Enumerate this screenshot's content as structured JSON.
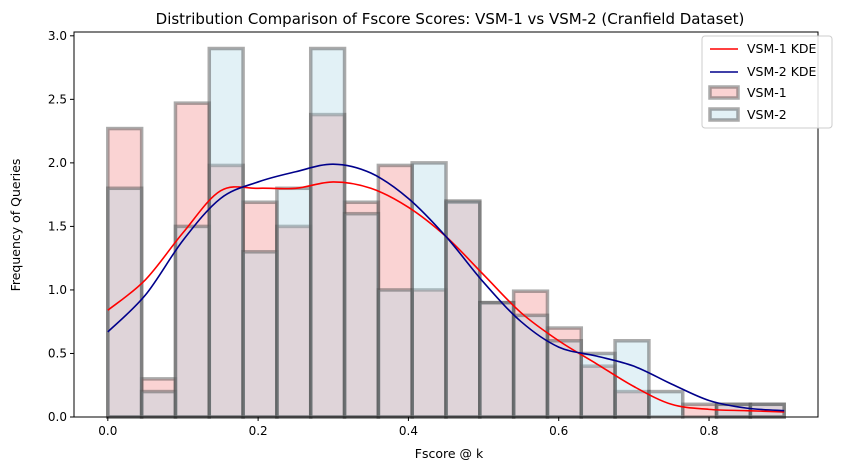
{
  "chart_data": {
    "type": "bar",
    "title": "Distribution Comparison of Fscore Scores: VSM-1 vs VSM-2 (Cranfield Dataset)",
    "xlabel": "Fscore @ k",
    "ylabel": "Frequency of Queries",
    "xlim": [
      -0.045,
      0.945
    ],
    "ylim": [
      0,
      3.03
    ],
    "xticks": [
      0.0,
      0.2,
      0.4,
      0.6,
      0.8
    ],
    "xtick_labels": [
      "0.0",
      "0.2",
      "0.4",
      "0.6",
      "0.8"
    ],
    "yticks": [
      0.0,
      0.5,
      1.0,
      1.5,
      2.0,
      2.5,
      3.0
    ],
    "ytick_labels": [
      "0.0",
      "0.5",
      "1.0",
      "1.5",
      "2.0",
      "2.5",
      "3.0"
    ],
    "grid": false,
    "legend_position": "top-right",
    "bin_width": 0.045,
    "histograms": [
      {
        "name": "VSM-1",
        "color": "#f08080",
        "edge_color": "#555555",
        "bin_starts": [
          0.0,
          0.045,
          0.09,
          0.135,
          0.18,
          0.225,
          0.27,
          0.315,
          0.36,
          0.405,
          0.45,
          0.495,
          0.54,
          0.585,
          0.63,
          0.675,
          0.72,
          0.765,
          0.81,
          0.855
        ],
        "values": [
          2.27,
          0.3,
          2.47,
          1.98,
          1.69,
          1.5,
          2.38,
          1.69,
          1.98,
          1.0,
          1.69,
          0.9,
          0.99,
          0.7,
          0.4,
          0.2,
          0.0,
          0.1,
          0.1,
          0.1
        ]
      },
      {
        "name": "VSM-2",
        "color": "#add8e6",
        "edge_color": "#555555",
        "bin_starts": [
          0.0,
          0.045,
          0.09,
          0.135,
          0.18,
          0.225,
          0.27,
          0.315,
          0.36,
          0.405,
          0.45,
          0.495,
          0.54,
          0.585,
          0.63,
          0.675,
          0.72,
          0.765,
          0.81,
          0.855
        ],
        "values": [
          1.8,
          0.2,
          1.5,
          2.9,
          1.3,
          1.8,
          2.9,
          1.6,
          1.0,
          2.0,
          1.7,
          0.9,
          0.8,
          0.6,
          0.5,
          0.6,
          0.2,
          0.0,
          0.1,
          0.1
        ]
      }
    ],
    "kde": [
      {
        "name": "VSM-1 KDE",
        "color": "#ff0000",
        "x": [
          0.0,
          0.05,
          0.1,
          0.15,
          0.2,
          0.25,
          0.3,
          0.35,
          0.4,
          0.45,
          0.5,
          0.55,
          0.6,
          0.65,
          0.7,
          0.75,
          0.8,
          0.85,
          0.9
        ],
        "y": [
          0.84,
          1.08,
          1.45,
          1.78,
          1.8,
          1.8,
          1.85,
          1.8,
          1.65,
          1.42,
          1.12,
          0.82,
          0.6,
          0.42,
          0.24,
          0.1,
          0.06,
          0.05,
          0.04
        ]
      },
      {
        "name": "VSM-2 KDE",
        "color": "#00008b",
        "x": [
          0.0,
          0.05,
          0.1,
          0.15,
          0.2,
          0.25,
          0.3,
          0.35,
          0.4,
          0.45,
          0.5,
          0.55,
          0.6,
          0.65,
          0.7,
          0.75,
          0.8,
          0.85,
          0.9
        ],
        "y": [
          0.67,
          0.96,
          1.39,
          1.72,
          1.85,
          1.93,
          1.99,
          1.92,
          1.72,
          1.42,
          1.06,
          0.75,
          0.55,
          0.48,
          0.4,
          0.26,
          0.13,
          0.07,
          0.05
        ]
      }
    ],
    "legend": [
      {
        "label": "VSM-1 KDE",
        "kind": "line",
        "color": "#ff0000"
      },
      {
        "label": "VSM-2 KDE",
        "kind": "line",
        "color": "#00008b"
      },
      {
        "label": "VSM-1",
        "kind": "patch",
        "color": "#f08080"
      },
      {
        "label": "VSM-2",
        "kind": "patch",
        "color": "#add8e6"
      }
    ]
  }
}
